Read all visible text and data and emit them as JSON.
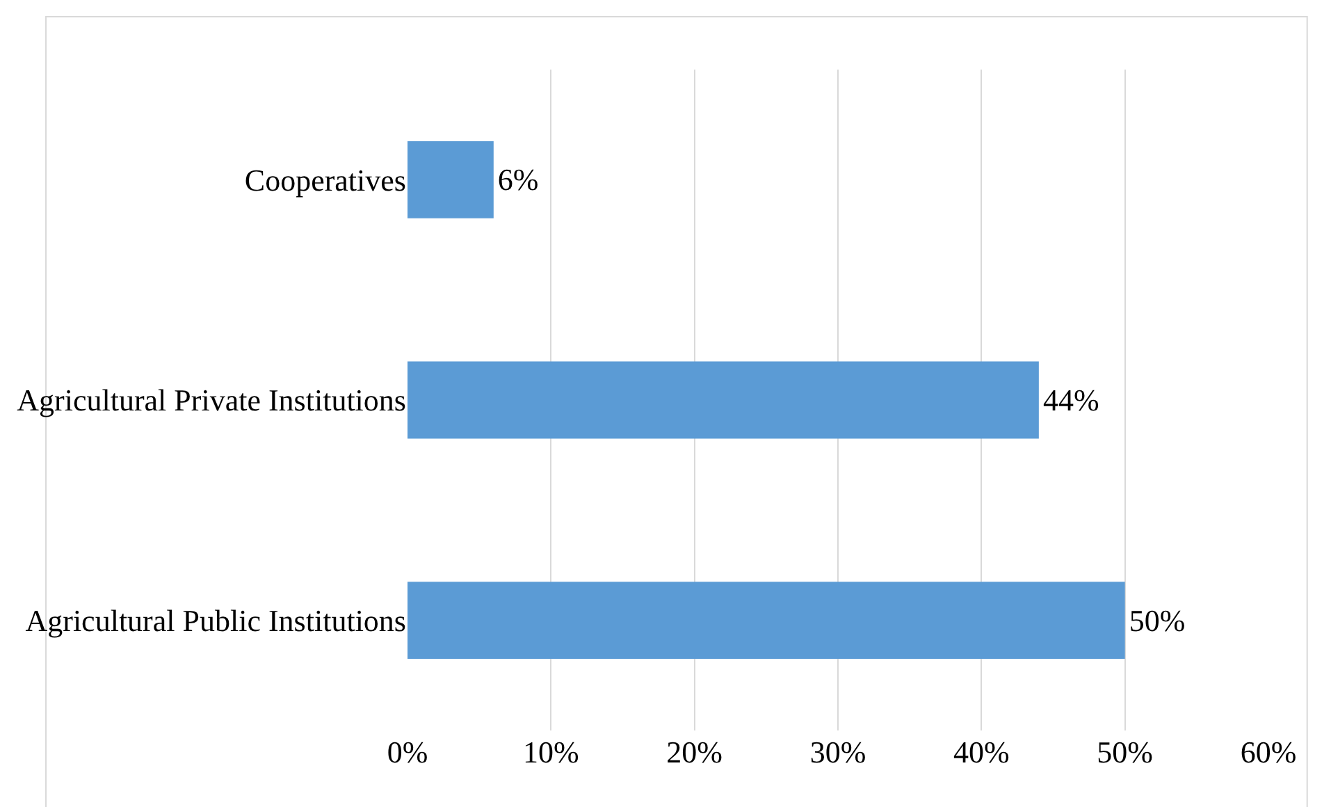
{
  "chart_data": {
    "type": "bar",
    "orientation": "horizontal",
    "categories": [
      "Cooperatives",
      "Agricultural Private Institutions",
      "Agricultural Public Institutions"
    ],
    "values": [
      6,
      44,
      50
    ],
    "value_labels": [
      "6%",
      "44%",
      "50%"
    ],
    "color": "#5b9bd5",
    "xlim": [
      0,
      60
    ],
    "xticks": [
      {
        "value": 0,
        "label": "0%"
      },
      {
        "value": 10,
        "label": "10%"
      },
      {
        "value": 20,
        "label": "20%"
      },
      {
        "value": 30,
        "label": "30%"
      },
      {
        "value": 40,
        "label": "40%"
      },
      {
        "value": 50,
        "label": "50%"
      },
      {
        "value": 60,
        "label": "60%"
      }
    ],
    "grid": "x",
    "legend": false
  }
}
